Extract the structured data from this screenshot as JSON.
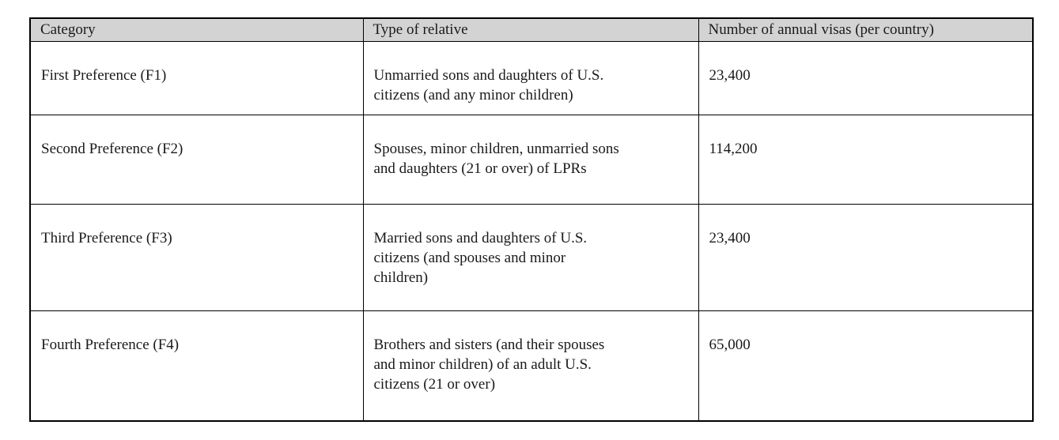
{
  "table": {
    "header_bg": "#d3d3d3",
    "border_color": "#000000",
    "columns": {
      "category": "Category",
      "relative": "Type of relative",
      "visas": "Number of annual visas (per country)"
    },
    "rows": [
      {
        "category": "First Preference (F1)",
        "relative": "Unmarried sons and daughters of U.S.\ncitizens (and any minor children)",
        "visas": "23,400"
      },
      {
        "category": "Second Preference (F2)",
        "relative": "Spouses, minor children, unmarried sons\nand daughters (21 or over) of LPRs",
        "visas": "114,200"
      },
      {
        "category": "Third Preference (F3)",
        "relative": "Married sons and daughters of U.S.\ncitizens (and spouses and minor\nchildren)",
        "visas": "23,400"
      },
      {
        "category": "Fourth Preference (F4)",
        "relative": "Brothers and sisters (and their spouses\nand minor children) of an adult U.S.\ncitizens (21 or over)",
        "visas": "65,000"
      }
    ]
  }
}
